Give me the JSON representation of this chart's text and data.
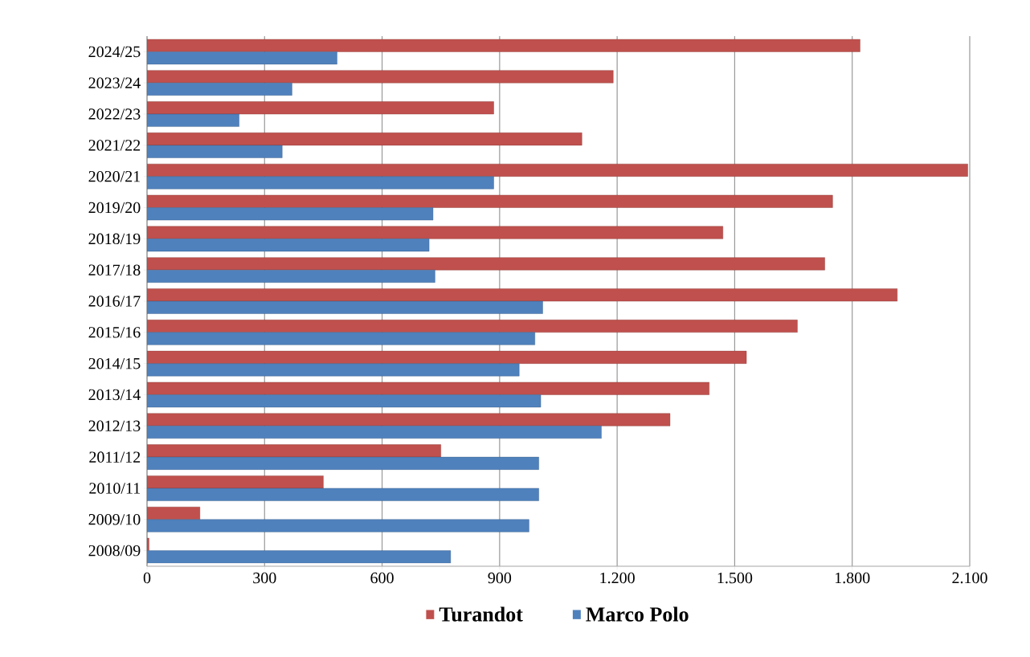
{
  "chart_data": {
    "type": "bar",
    "orientation": "horizontal",
    "categories": [
      "2024/25",
      "2023/24",
      "2022/23",
      "2021/22",
      "2020/21",
      "2019/20",
      "2018/19",
      "2017/18",
      "2016/17",
      "2015/16",
      "2014/15",
      "2013/14",
      "2012/13",
      "2011/12",
      "2010/11",
      "2009/10",
      "2008/09"
    ],
    "series": [
      {
        "name": "Turandot",
        "color": "#c0504d",
        "values": [
          1820,
          1190,
          885,
          1110,
          2095,
          1750,
          1470,
          1730,
          1915,
          1660,
          1530,
          1435,
          1335,
          750,
          450,
          135,
          5
        ]
      },
      {
        "name": "Marco Polo",
        "color": "#4f81bd",
        "values": [
          485,
          370,
          235,
          345,
          885,
          730,
          720,
          735,
          1010,
          990,
          950,
          1005,
          1160,
          1000,
          1000,
          975,
          775
        ]
      }
    ],
    "xlim": [
      0,
      2100
    ],
    "xticks": [
      0,
      300,
      600,
      900,
      {
        "value": 1200,
        "label": "1.200"
      },
      {
        "value": 1500,
        "label": "1.500"
      },
      {
        "value": 1800,
        "label": "1.800"
      },
      {
        "value": 2100,
        "label": "2.100"
      }
    ],
    "grid": "x",
    "legend": "bottom"
  }
}
